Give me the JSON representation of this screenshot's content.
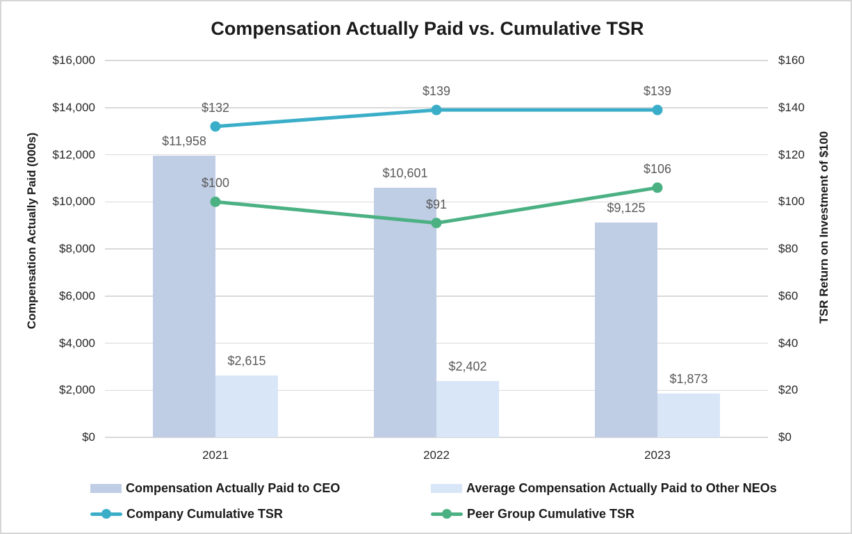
{
  "title": "Compensation Actually Paid vs. Cumulative TSR",
  "colors": {
    "ceo_bar": "#bfcde5",
    "neo_bar": "#d8e6f7",
    "company_line": "#3aaec8",
    "peer_line": "#4bb183",
    "gridline": "#d9d9d9",
    "tick_label": "#262626",
    "data_label": "#595959",
    "title_text": "#1a1a1a",
    "frame_border": "#d6d6d6"
  },
  "chart_data": {
    "type": "combo_bar_line",
    "title": "Compensation Actually Paid vs. Cumulative TSR",
    "categories": [
      "2021",
      "2022",
      "2023"
    ],
    "bar_series": [
      {
        "name": "Compensation Actually Paid to CEO",
        "axis": "left",
        "color_key": "ceo_bar",
        "values": [
          11958,
          10601,
          9125
        ],
        "labels": [
          "$11,958",
          "$10,601",
          "$9,125"
        ]
      },
      {
        "name": "Average Compensation Actually Paid to Other NEOs",
        "axis": "left",
        "color_key": "neo_bar",
        "values": [
          2615,
          2402,
          1873
        ],
        "labels": [
          "$2,615",
          "$2,402",
          "$1,873"
        ]
      }
    ],
    "line_series": [
      {
        "name": "Company Cumulative TSR",
        "axis": "right",
        "color_key": "company_line",
        "values": [
          132,
          139,
          139
        ],
        "labels": [
          "$132",
          "$139",
          "$139"
        ]
      },
      {
        "name": "Peer Group Cumulative TSR",
        "axis": "right",
        "color_key": "peer_line",
        "values": [
          100,
          91,
          106
        ],
        "labels": [
          "$100",
          "$91",
          "$106"
        ]
      }
    ],
    "left_axis": {
      "title": "Compensation Actually Paid (000s)",
      "min": 0,
      "max": 16000,
      "ticks": [
        "$16,000",
        "$14,000",
        "$12,000",
        "$10,000",
        "$8,000",
        "$6,000",
        "$4,000",
        "$2,000",
        "$0"
      ]
    },
    "right_axis": {
      "title": "TSR Return on Investment of $100",
      "min": 0,
      "max": 160,
      "ticks": [
        "$160",
        "$140",
        "$120",
        "$100",
        "$80",
        "$60",
        "$40",
        "$20",
        "$0"
      ]
    },
    "grid": "horizontal-only",
    "legend_position": "bottom-two-columns",
    "legend": [
      {
        "label": "Compensation Actually Paid to CEO",
        "type": "bar",
        "color_key": "ceo_bar",
        "row": 0,
        "col": 0
      },
      {
        "label": "Average Compensation Actually Paid to Other NEOs",
        "type": "bar",
        "color_key": "neo_bar",
        "row": 0,
        "col": 1
      },
      {
        "label": "Company Cumulative TSR",
        "type": "line",
        "color_key": "company_line",
        "row": 1,
        "col": 0
      },
      {
        "label": "Peer Group Cumulative TSR",
        "type": "line",
        "color_key": "peer_line",
        "row": 1,
        "col": 1
      }
    ]
  }
}
